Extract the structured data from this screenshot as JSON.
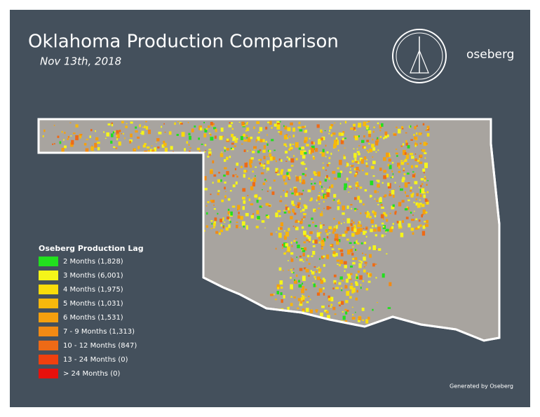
{
  "title": "Oklahoma Production Comparison",
  "subtitle": "Nov 13th, 2018",
  "brand": "oseberg",
  "legend": {
    "title": "Oseberg Production Lag",
    "items": [
      {
        "label": "2 Months (1,828)",
        "color": "#22e01e"
      },
      {
        "label": "3 Months (6,001)",
        "color": "#f5f51a"
      },
      {
        "label": "4 Months (1,975)",
        "color": "#f9dc0a"
      },
      {
        "label": "5 Months (1,031)",
        "color": "#f7b80c"
      },
      {
        "label": "6 Months (1,531)",
        "color": "#f5a00e"
      },
      {
        "label": "7 - 9 Months (1,313)",
        "color": "#f28a14"
      },
      {
        "label": "10 - 12 Months (847)",
        "color": "#ee6a16"
      },
      {
        "label": "13 - 24 Months (0)",
        "color": "#f0400e"
      },
      {
        "label": "> 24 Months (0)",
        "color": "#e8100c"
      }
    ]
  },
  "footer": "Generated by Oseberg"
}
